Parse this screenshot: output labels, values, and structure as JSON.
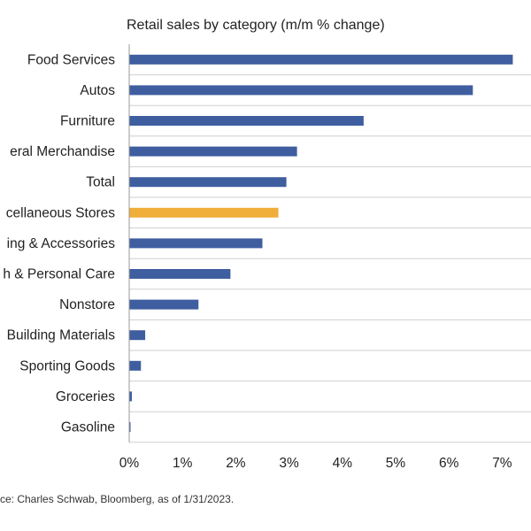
{
  "chart_data": {
    "type": "bar",
    "orientation": "horizontal",
    "title": "Retail sales by category (m/m % change)",
    "source": "ce: Charles Schwab, Bloomberg, as of 1/31/2023.",
    "categories": [
      "Food Services",
      "Autos",
      "Furniture",
      "eral Merchandise",
      "Total",
      "cellaneous Stores",
      "ing & Accessories",
      "h & Personal Care",
      "Nonstore",
      "Building Materials",
      "Sporting Goods",
      "Groceries",
      "Gasoline"
    ],
    "values": [
      7.2,
      6.45,
      4.4,
      3.15,
      2.95,
      2.8,
      2.5,
      1.9,
      1.3,
      0.3,
      0.22,
      0.05,
      0.02
    ],
    "highlight_index": 5,
    "xlim": [
      0,
      7
    ],
    "xticks": [
      0,
      1,
      2,
      3,
      4,
      5,
      6,
      7
    ],
    "xtick_labels": [
      "0%",
      "1%",
      "2%",
      "3%",
      "4%",
      "5%",
      "6%",
      "7%"
    ],
    "grid": "horizontal separators",
    "colors": {
      "bar": "#3F5EA0",
      "highlight": "#F0AE3A",
      "separator": "#cfcfcf",
      "axis": "#9a9a9a"
    }
  }
}
